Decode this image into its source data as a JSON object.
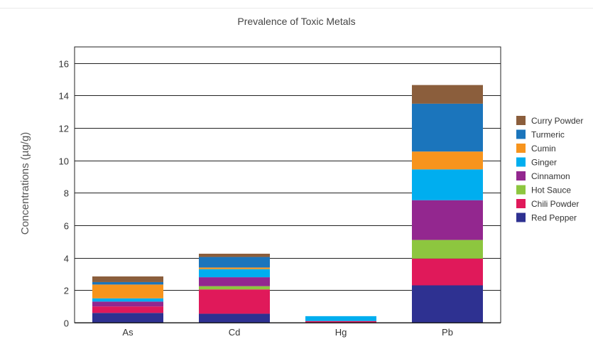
{
  "chart_data": {
    "type": "bar",
    "stacked": true,
    "title": "Prevalence of Toxic Metals",
    "ylabel": "Concentrations (µg/g)",
    "xlabel": "",
    "ylim": [
      0,
      17
    ],
    "yticks": [
      0,
      2,
      4,
      6,
      8,
      10,
      12,
      14,
      16
    ],
    "grid": true,
    "legend_position": "right",
    "categories": [
      "As",
      "Cd",
      "Hg",
      "Pb"
    ],
    "series": [
      {
        "name": "Red Pepper",
        "color": "#2e3191",
        "values": [
          0.6,
          0.55,
          0.0,
          2.3
        ]
      },
      {
        "name": "Chili Powder",
        "color": "#e0195a",
        "values": [
          0.4,
          1.5,
          0.1,
          1.65
        ]
      },
      {
        "name": "Hot Sauce",
        "color": "#8dc63f",
        "values": [
          0.0,
          0.2,
          0.0,
          1.15
        ]
      },
      {
        "name": "Cinnamon",
        "color": "#93278f",
        "values": [
          0.3,
          0.55,
          0.0,
          2.45
        ]
      },
      {
        "name": "Ginger",
        "color": "#00aeef",
        "values": [
          0.2,
          0.5,
          0.3,
          1.9
        ]
      },
      {
        "name": "Cumin",
        "color": "#f7941d",
        "values": [
          0.85,
          0.1,
          0.0,
          1.1
        ]
      },
      {
        "name": "Turmeric",
        "color": "#1b75bc",
        "values": [
          0.15,
          0.65,
          0.0,
          2.95
        ]
      },
      {
        "name": "Curry Powder",
        "color": "#8b5e3c",
        "values": [
          0.35,
          0.2,
          0.0,
          1.15
        ]
      }
    ],
    "legend_order": [
      "Curry Powder",
      "Turmeric",
      "Cumin",
      "Ginger",
      "Cinnamon",
      "Hot Sauce",
      "Chili Powder",
      "Red Pepper"
    ]
  }
}
